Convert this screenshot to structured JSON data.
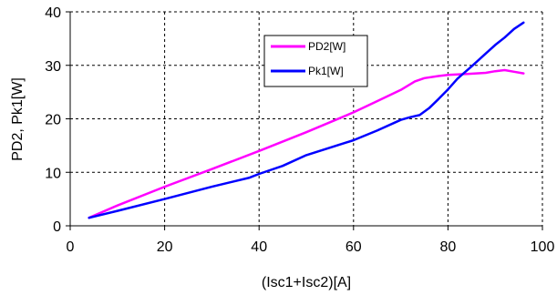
{
  "chart_data": {
    "type": "line",
    "title": "",
    "xlabel": "(Isc1+Isc2)[A]",
    "ylabel": "PD2, Pk1[W]",
    "xlim": [
      0,
      100
    ],
    "ylim": [
      0,
      40
    ],
    "x_ticks": [
      0,
      20,
      40,
      60,
      80,
      100
    ],
    "y_ticks": [
      0,
      10,
      20,
      30,
      40
    ],
    "grid": true,
    "legend": "upper-middle-right",
    "series": [
      {
        "name": "PD2[W]",
        "color": "#ff00ff",
        "x": [
          4,
          10,
          20,
          30,
          40,
          50,
          60,
          65,
          70,
          73,
          75,
          78,
          80,
          82,
          84,
          86,
          88,
          90,
          92,
          94,
          96
        ],
        "y": [
          1.5,
          3.8,
          7.3,
          10.6,
          14.0,
          17.5,
          21.2,
          23.3,
          25.4,
          27.0,
          27.6,
          28.0,
          28.2,
          28.3,
          28.4,
          28.5,
          28.6,
          28.9,
          29.1,
          28.8,
          28.5
        ]
      },
      {
        "name": "Pk1[W]",
        "color": "#0000ff",
        "x": [
          4,
          10,
          20,
          30,
          38,
          40,
          45,
          50,
          60,
          65,
          70,
          72,
          74,
          76,
          78,
          80,
          82,
          85,
          88,
          90,
          92,
          94,
          96
        ],
        "y": [
          1.5,
          2.8,
          5.0,
          7.3,
          9.0,
          9.7,
          11.2,
          13.2,
          16.0,
          17.8,
          19.8,
          20.3,
          20.7,
          22.0,
          23.7,
          25.5,
          27.5,
          29.8,
          32.2,
          33.8,
          35.2,
          36.8,
          38.0
        ]
      }
    ]
  }
}
